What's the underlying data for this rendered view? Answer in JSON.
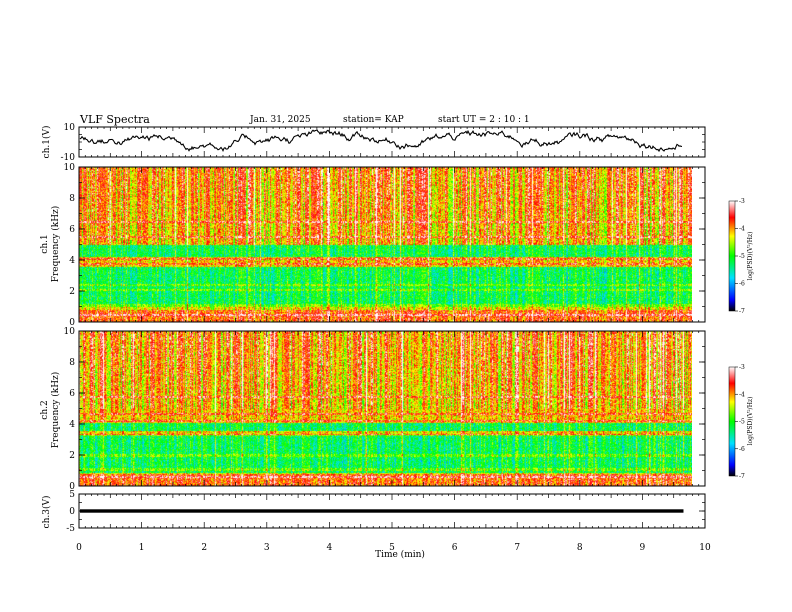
{
  "chart_data": {
    "type": "heatmap",
    "title": "VLF Spectra",
    "date": "Jan. 31, 2025",
    "station": "station= KAP",
    "start_ut": "start UT =  2 : 10 : 1",
    "xlabel": "Time (min)",
    "xlim": [
      0,
      10
    ],
    "xticks": [
      "0",
      "1",
      "2",
      "3",
      "4",
      "5",
      "6",
      "7",
      "8",
      "9",
      "10"
    ],
    "data_end_min": 9.8,
    "panels": {
      "ch1_wave": {
        "ylabel": "ch.1(V)",
        "ylim": [
          -10,
          10
        ],
        "yticks": [
          "10",
          "-10"
        ],
        "description": "noisy waveform roughly between -5 and +8 V"
      },
      "ch1_spec": {
        "ylabel_top": "ch.1",
        "ylabel": "Frequency (kHz)",
        "ylim": [
          0,
          10
        ],
        "yticks": [
          "10",
          "8",
          "6",
          "4",
          "2",
          "0"
        ],
        "colorbar_ticks": [
          "-3",
          "-4",
          "-5",
          "-6",
          "-7"
        ],
        "colorbar_label": "log(PSD)(V²/Hz)",
        "low_bands_khz": [
          [
            1.0,
            3.6
          ],
          [
            4.2,
            5.0
          ]
        ],
        "horizontal_lines_khz": [
          0.5,
          1.1,
          2.1,
          2.4,
          3.8,
          4.1,
          5.5,
          6.5
        ]
      },
      "ch2_spec": {
        "ylabel_top": "ch.2",
        "ylabel": "Frequency (kHz)",
        "ylim": [
          0,
          10
        ],
        "yticks": [
          "10",
          "8",
          "6",
          "4",
          "2",
          "0"
        ],
        "colorbar_ticks": [
          "-3",
          "-4",
          "-5",
          "-6",
          "-7"
        ],
        "colorbar_label": "log(PSD)(V²/Hz)",
        "low_bands_khz": [
          [
            0.9,
            3.3
          ],
          [
            3.6,
            4.1
          ]
        ],
        "horizontal_lines_khz": [
          0.6,
          1.1,
          2.0,
          3.3,
          4.2,
          4.7,
          5.8
        ]
      },
      "ch3_wave": {
        "ylabel": "ch.3(V)",
        "ylim": [
          -5,
          5
        ],
        "yticks": [
          "5",
          "0",
          "-5"
        ],
        "level_v": [
          -0.5,
          0.5
        ]
      }
    }
  }
}
